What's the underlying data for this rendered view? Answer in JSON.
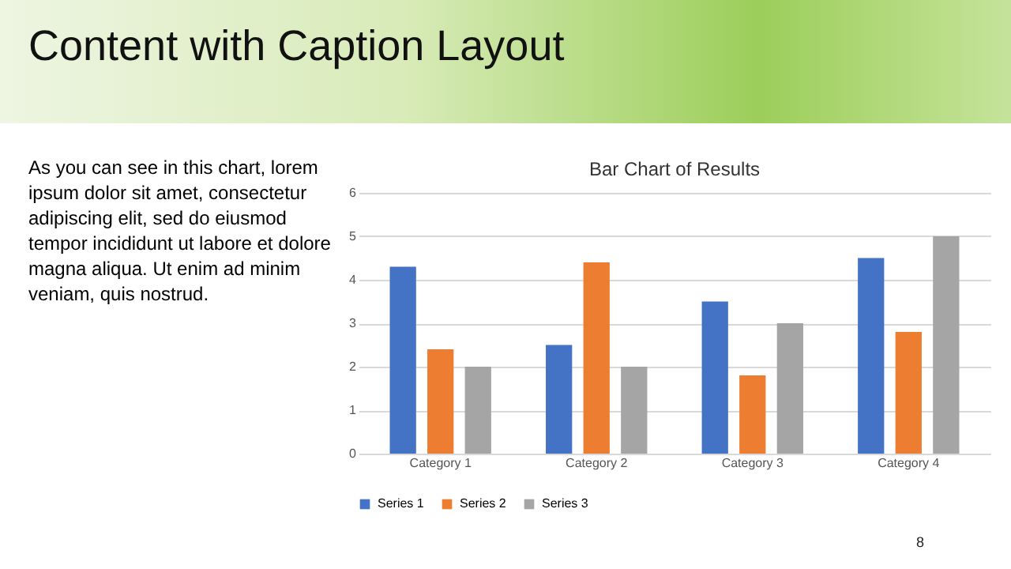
{
  "chart_data": {
    "type": "bar",
    "title": "Bar Chart of Results",
    "subtitle": "Content with Caption Layout",
    "annotations": [
      "As you can see in this chart, lorem ipsum dolor sit amet, consectetur adipiscing elit, sed do eiusmod tempor incididunt ut labore et dolore magna aliqua. Ut enim ad minim veniam, quis nostrud.",
      "8"
    ],
    "categories": [
      "Category 1",
      "Category 2",
      "Category 3",
      "Category 4"
    ],
    "series": [
      {
        "name": "Series 1",
        "color": "#4472c4",
        "values": [
          4.3,
          2.5,
          3.5,
          4.5
        ]
      },
      {
        "name": "Series 2",
        "color": "#ed7d31",
        "values": [
          2.4,
          4.4,
          1.8,
          2.8
        ]
      },
      {
        "name": "Series 3",
        "color": "#a5a5a5",
        "values": [
          2,
          2,
          3,
          5
        ]
      }
    ],
    "ylim": [
      0,
      6
    ],
    "yticks": [
      0,
      1,
      2,
      3,
      4,
      5,
      6
    ],
    "grid": "y",
    "legend": "bottom"
  }
}
